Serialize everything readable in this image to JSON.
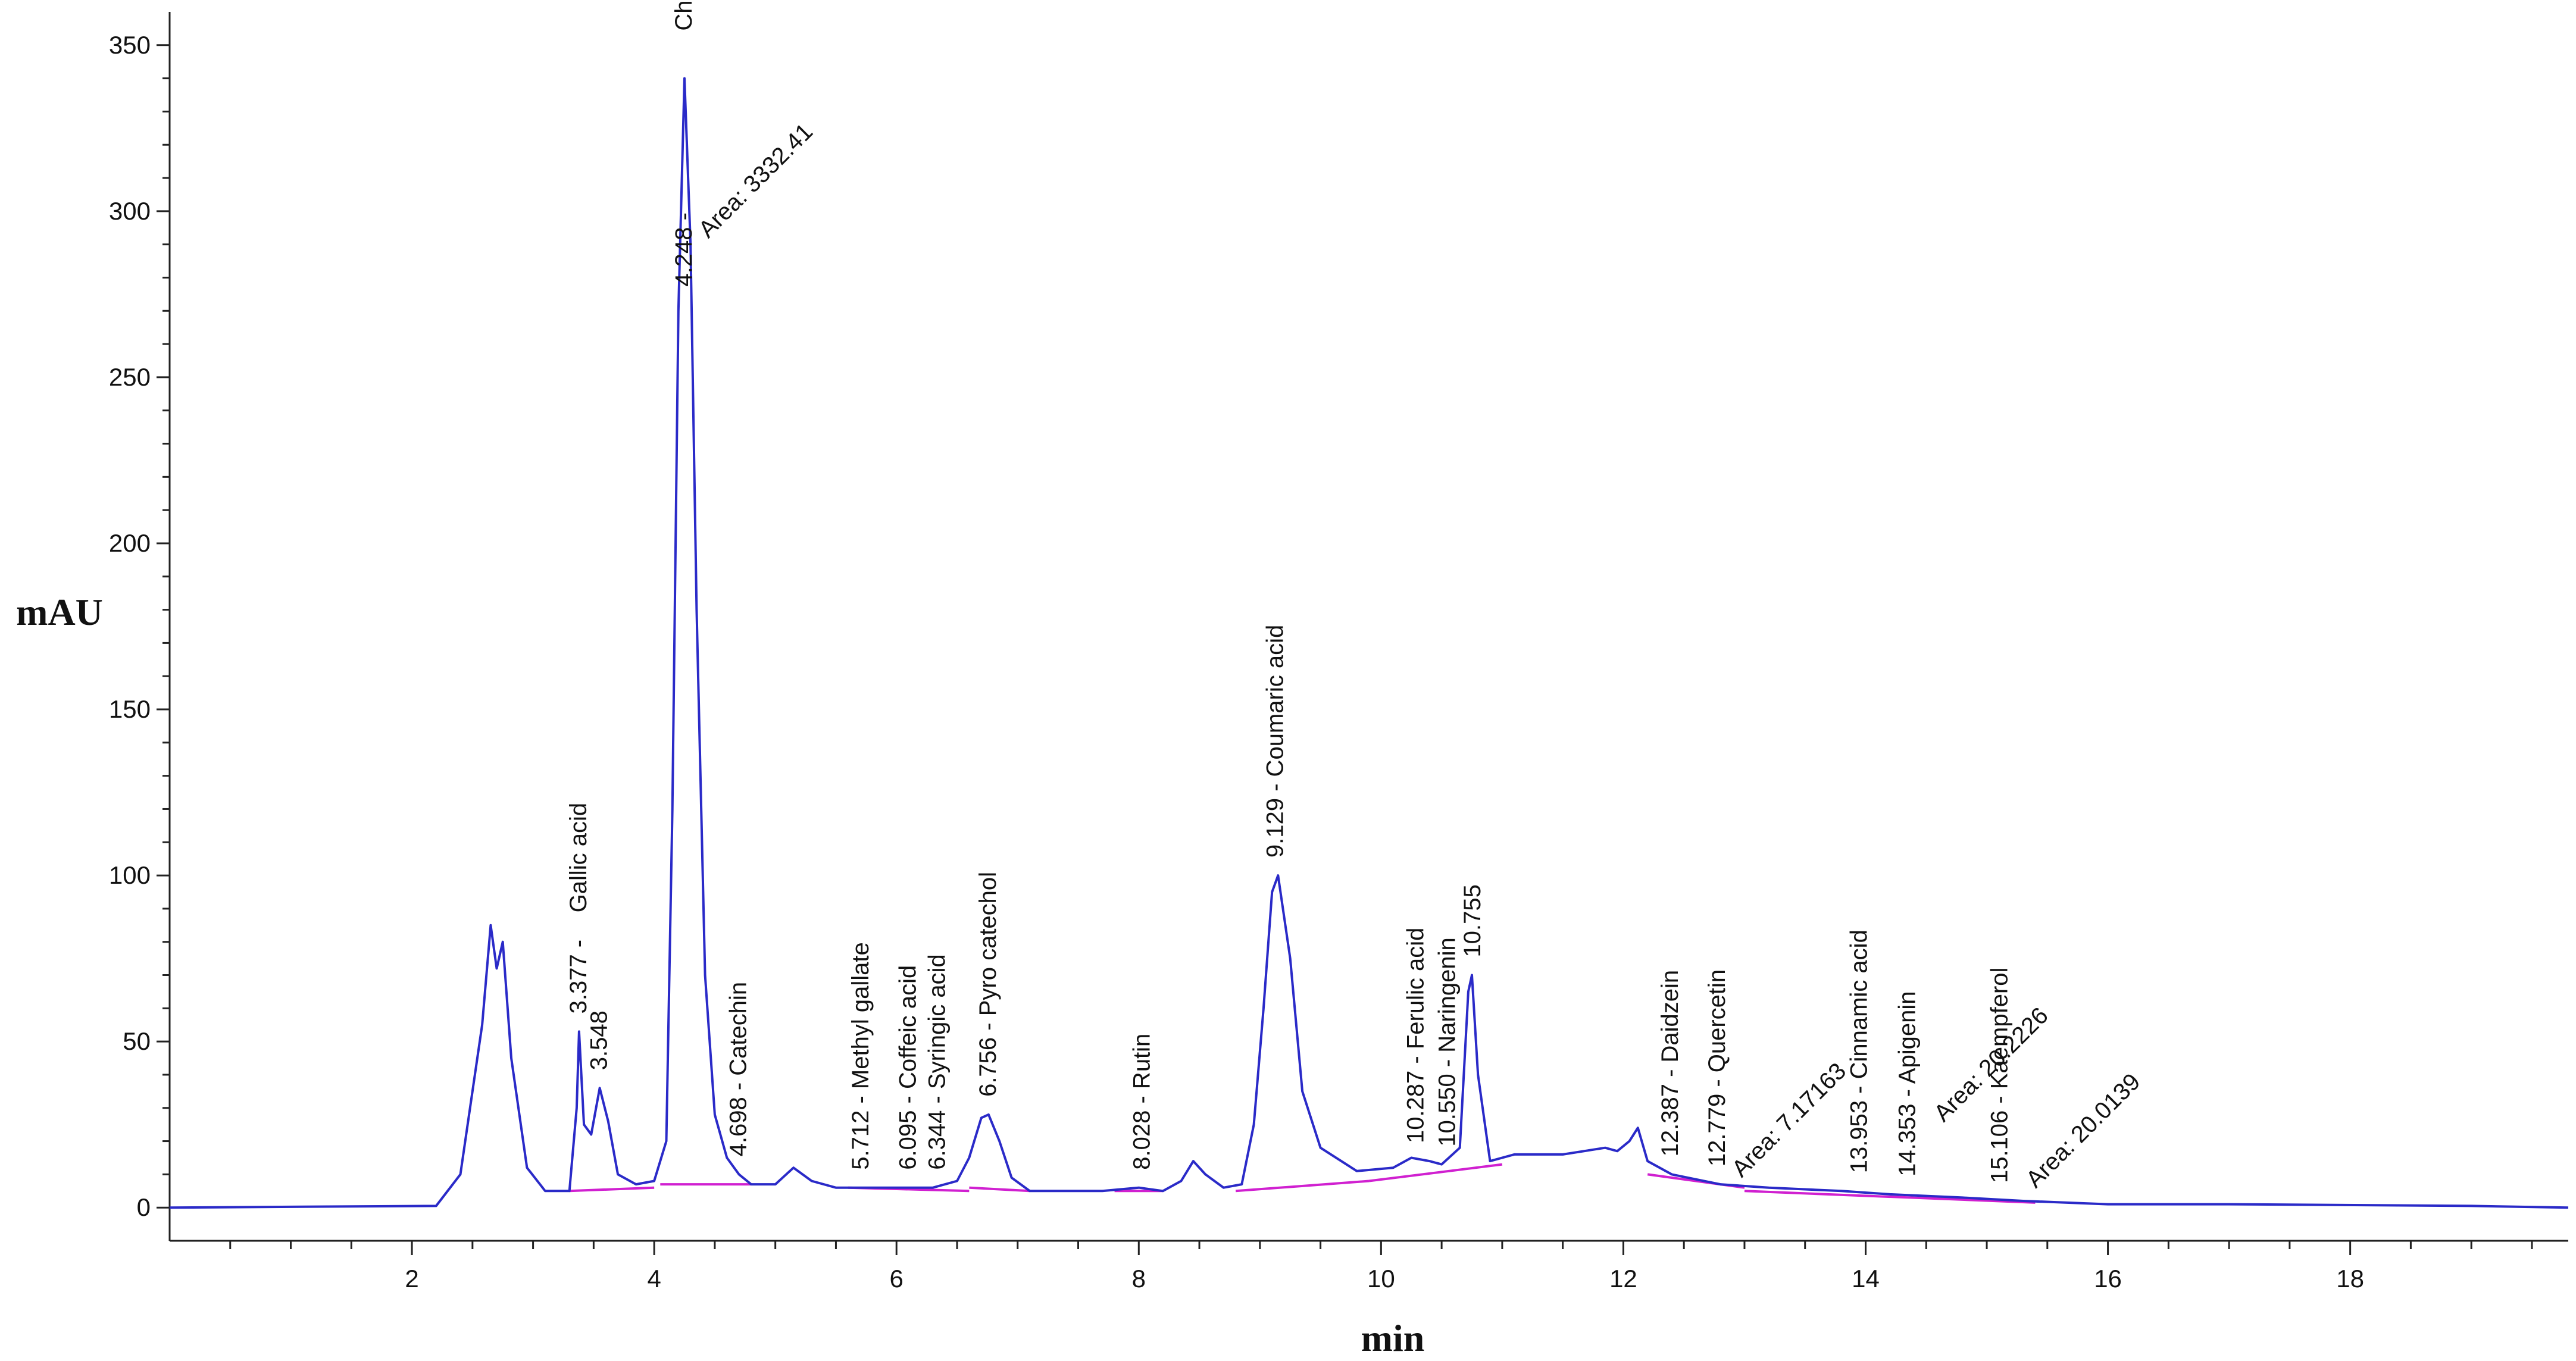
{
  "chart_data": {
    "type": "line",
    "xlabel": "min",
    "ylabel": "mAU",
    "xlim": [
      0,
      19.8
    ],
    "ylim": [
      -10,
      360
    ],
    "xticks": [
      2,
      4,
      6,
      8,
      10,
      12,
      14,
      16,
      18
    ],
    "xtick_labels": [
      "2",
      "4",
      "6",
      "8",
      "10",
      "12",
      "14",
      "16",
      "18"
    ],
    "yticks": [
      0,
      50,
      100,
      150,
      200,
      250,
      300,
      350
    ],
    "ytick_labels": [
      "0",
      "50",
      "100",
      "150",
      "200",
      "250",
      "300",
      "350"
    ],
    "grid": false,
    "line_color": "#2a2ac8",
    "baseline_color": "#d020d0",
    "series": [
      {
        "values": [
          [
            0,
            0
          ],
          [
            2.2,
            0.5
          ],
          [
            2.4,
            10
          ],
          [
            2.5,
            35
          ],
          [
            2.58,
            55
          ],
          [
            2.65,
            85
          ],
          [
            2.7,
            72
          ],
          [
            2.75,
            80
          ],
          [
            2.82,
            45
          ],
          [
            2.95,
            12
          ],
          [
            3.1,
            5
          ],
          [
            3.3,
            5
          ],
          [
            3.36,
            30
          ],
          [
            3.38,
            53
          ],
          [
            3.42,
            25
          ],
          [
            3.48,
            22
          ],
          [
            3.55,
            36
          ],
          [
            3.62,
            26
          ],
          [
            3.7,
            10
          ],
          [
            3.85,
            7
          ],
          [
            4.0,
            8
          ],
          [
            4.1,
            20
          ],
          [
            4.15,
            120
          ],
          [
            4.2,
            270
          ],
          [
            4.25,
            340
          ],
          [
            4.3,
            290
          ],
          [
            4.35,
            180
          ],
          [
            4.42,
            70
          ],
          [
            4.5,
            28
          ],
          [
            4.6,
            15
          ],
          [
            4.7,
            10
          ],
          [
            4.8,
            7
          ],
          [
            5.0,
            7
          ],
          [
            5.15,
            12
          ],
          [
            5.3,
            8
          ],
          [
            5.5,
            6
          ],
          [
            5.7,
            6
          ],
          [
            5.9,
            6
          ],
          [
            6.1,
            6
          ],
          [
            6.3,
            6
          ],
          [
            6.5,
            8
          ],
          [
            6.6,
            15
          ],
          [
            6.7,
            27
          ],
          [
            6.76,
            28
          ],
          [
            6.85,
            20
          ],
          [
            6.95,
            9
          ],
          [
            7.1,
            5
          ],
          [
            7.5,
            5
          ],
          [
            7.7,
            5
          ],
          [
            8.0,
            6
          ],
          [
            8.2,
            5
          ],
          [
            8.35,
            8
          ],
          [
            8.45,
            14
          ],
          [
            8.55,
            10
          ],
          [
            8.7,
            6
          ],
          [
            8.85,
            7
          ],
          [
            8.95,
            25
          ],
          [
            9.03,
            60
          ],
          [
            9.1,
            95
          ],
          [
            9.15,
            100
          ],
          [
            9.25,
            75
          ],
          [
            9.35,
            35
          ],
          [
            9.5,
            18
          ],
          [
            9.8,
            11
          ],
          [
            10.1,
            12
          ],
          [
            10.25,
            15
          ],
          [
            10.4,
            14
          ],
          [
            10.5,
            13
          ],
          [
            10.65,
            18
          ],
          [
            10.72,
            65
          ],
          [
            10.75,
            70
          ],
          [
            10.8,
            40
          ],
          [
            10.9,
            14
          ],
          [
            11.1,
            16
          ],
          [
            11.5,
            16
          ],
          [
            11.85,
            18
          ],
          [
            11.95,
            17
          ],
          [
            12.05,
            20
          ],
          [
            12.12,
            24
          ],
          [
            12.2,
            14
          ],
          [
            12.4,
            10
          ],
          [
            12.8,
            7
          ],
          [
            13.2,
            6
          ],
          [
            13.8,
            5
          ],
          [
            14.2,
            4
          ],
          [
            14.8,
            3
          ],
          [
            15.3,
            2
          ],
          [
            16.0,
            1
          ],
          [
            17.0,
            1
          ],
          [
            19.0,
            0.5
          ],
          [
            19.8,
            0
          ]
        ]
      }
    ],
    "baseline_segments": [
      [
        [
          3.3,
          5
        ],
        [
          4.0,
          6
        ]
      ],
      [
        [
          4.05,
          7
        ],
        [
          4.8,
          7
        ]
      ],
      [
        [
          5.6,
          6
        ],
        [
          6.6,
          5
        ]
      ],
      [
        [
          6.6,
          6
        ],
        [
          7.1,
          5
        ]
      ],
      [
        [
          7.8,
          5
        ],
        [
          8.2,
          5
        ]
      ],
      [
        [
          8.8,
          5
        ],
        [
          9.9,
          8
        ]
      ],
      [
        [
          9.9,
          8
        ],
        [
          11.0,
          13
        ]
      ],
      [
        [
          12.2,
          10
        ],
        [
          13.0,
          6
        ]
      ],
      [
        [
          13.0,
          5
        ],
        [
          15.4,
          1.5
        ]
      ]
    ],
    "annotations": [
      {
        "text": "Gallic acid",
        "x": 3.38,
        "y": 53
      },
      {
        "text": "3.377 -",
        "x": 3.38,
        "y": 53
      },
      {
        "text": "3.548",
        "x": 3.55,
        "y": 36
      },
      {
        "text": "4.248 -",
        "x": 4.25,
        "y": 340
      },
      {
        "text": "Chlorogenic acid",
        "x": 4.25,
        "y": 340
      },
      {
        "text": "Area: 3332.41",
        "x": 4.25,
        "y": 340
      },
      {
        "text": "4.698 - Catechin",
        "x": 4.7,
        "y": 10
      },
      {
        "text": "5.712 - Methyl gallate",
        "x": 5.71,
        "y": 6
      },
      {
        "text": "6.095 - Coffeic acid",
        "x": 6.1,
        "y": 6
      },
      {
        "text": "6.344 - Syringic acid",
        "x": 6.34,
        "y": 6
      },
      {
        "text": "6.756 - Pyro catechol",
        "x": 6.76,
        "y": 28
      },
      {
        "text": "8.028 - Rutin",
        "x": 8.03,
        "y": 6
      },
      {
        "text": "9.129 - Coumaric acid",
        "x": 9.13,
        "y": 100
      },
      {
        "text": "10.287 - Ferulic acid",
        "x": 10.29,
        "y": 14
      },
      {
        "text": "10.550 - Naringenin",
        "x": 10.55,
        "y": 13
      },
      {
        "text": "10.755",
        "x": 10.76,
        "y": 70
      },
      {
        "text": "12.387 - Daidzein",
        "x": 12.39,
        "y": 10
      },
      {
        "text": "12.779 - Quercetin",
        "x": 12.78,
        "y": 7
      },
      {
        "text": "Area: 7.17163",
        "x": 12.78,
        "y": 7
      },
      {
        "text": "13.953 - Cinnamic acid",
        "x": 13.95,
        "y": 5
      },
      {
        "text": "14.353 - Apigenin",
        "x": 14.35,
        "y": 4
      },
      {
        "text": "Area: 20.2226",
        "x": 14.35,
        "y": 4
      },
      {
        "text": "15.106 - Kaempferol",
        "x": 15.11,
        "y": 2
      },
      {
        "text": "Area: 20.0139",
        "x": 15.11,
        "y": 2
      }
    ]
  }
}
